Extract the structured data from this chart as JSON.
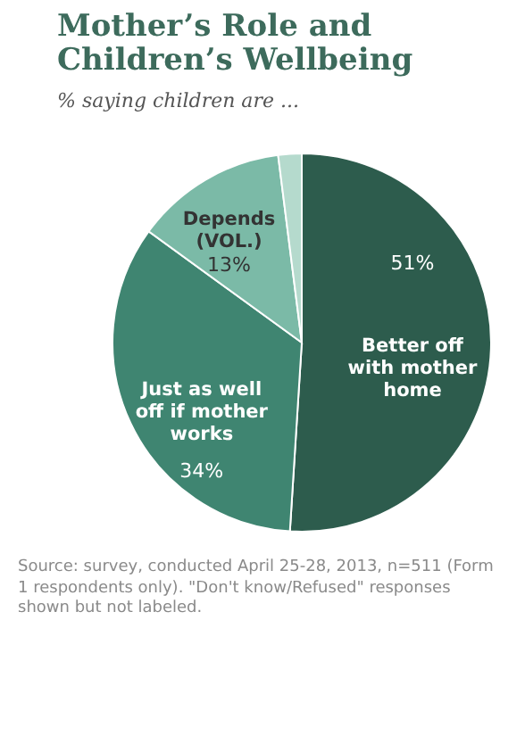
{
  "chart_data": {
    "type": "pie",
    "title": "Mother’s Role and Children’s Wellbeing",
    "subtitle": "% saying children are ...",
    "categories": [
      "Better off with mother home",
      "Just as well off if mother works",
      "Depends (VOL.)",
      null
    ],
    "values": [
      51,
      34,
      13,
      2
    ],
    "value_labels": [
      "51%",
      "34%",
      "13%",
      null
    ],
    "colors": [
      "#2d5c4d",
      "#3f8571",
      "#7bbaa7",
      "#b5dacd"
    ],
    "annotations": [
      "Source: survey, conducted April 25-28, 2013, n=511 (Form 1 respondents only). \"Don't know/Refused\" responses shown but not labeled."
    ]
  }
}
